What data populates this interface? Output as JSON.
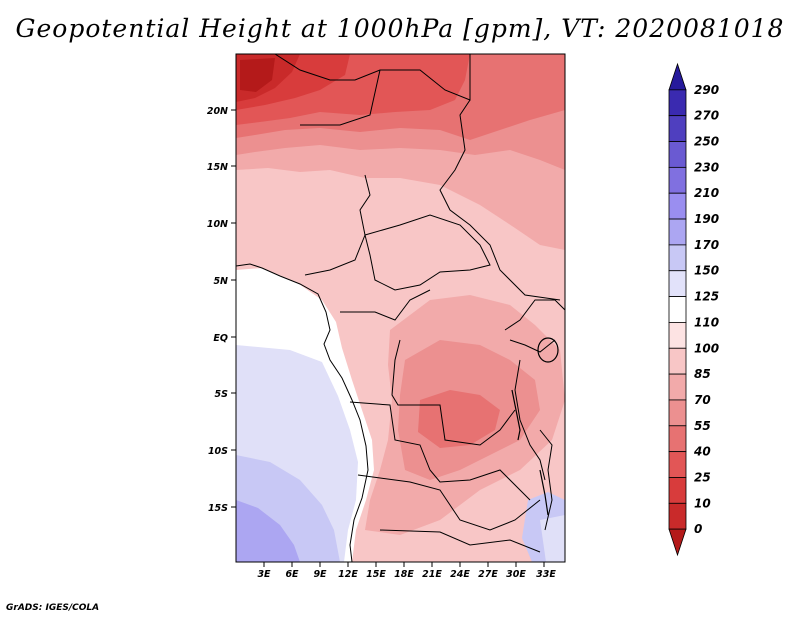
{
  "title": "Geopotential Height at 1000hPa [gpm], VT: 2020081018",
  "credit": "GrADS: IGES/COLA",
  "chart_data": {
    "type": "filled-contour map",
    "variable": "Geopotential Height at 1000hPa",
    "units": "gpm",
    "valid_time": "2020081018",
    "lon_range": [
      0,
      35
    ],
    "lat_range": [
      -20,
      25
    ],
    "lon_ticks": [
      "3E",
      "6E",
      "9E",
      "12E",
      "15E",
      "18E",
      "21E",
      "24E",
      "27E",
      "30E",
      "33E"
    ],
    "lat_ticks": [
      "20N",
      "15N",
      "10N",
      "5N",
      "EQ",
      "5S",
      "10S",
      "15S"
    ],
    "colorbar": {
      "levels": [
        "0",
        "10",
        "25",
        "40",
        "55",
        "70",
        "85",
        "100",
        "110",
        "125",
        "150",
        "170",
        "190",
        "210",
        "230",
        "250",
        "270",
        "290"
      ],
      "colors": [
        "#b41a1a",
        "#c92a2a",
        "#d83c3c",
        "#e25656",
        "#e77272",
        "#ec9090",
        "#f2aaaa",
        "#f8c6c6",
        "#fde3e3",
        "#ffffff",
        "#e2e2fa",
        "#c8c8f5",
        "#aca6f2",
        "#9a8ef0",
        "#8070e0",
        "#6a5ad2",
        "#4f3fbf",
        "#3a2ab0",
        "#261a9c"
      ]
    }
  }
}
